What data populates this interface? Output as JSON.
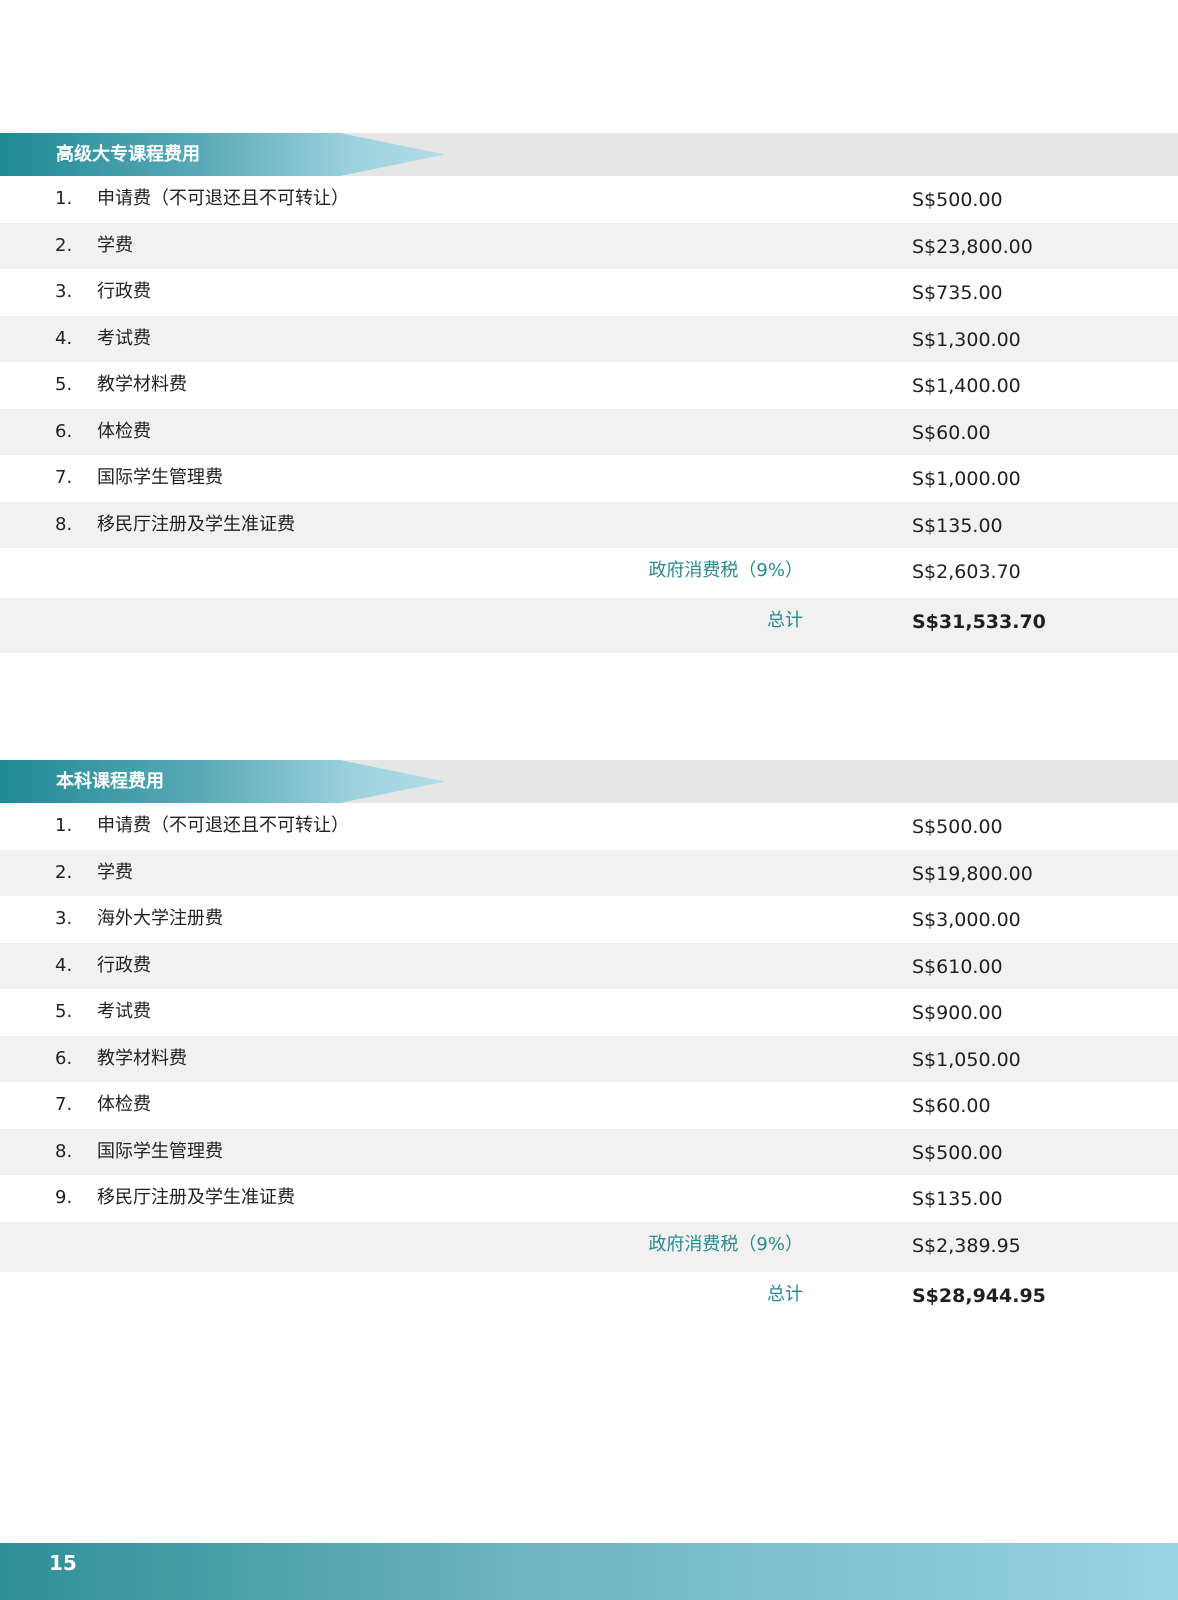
{
  "sections": [
    {
      "title": "高级大专课程费用",
      "items": [
        {
          "num": "1.",
          "label": "申请费（不可退还且不可转让）",
          "amount": "S$500.00"
        },
        {
          "num": "2.",
          "label": "学费",
          "amount": "S$23,800.00"
        },
        {
          "num": "3.",
          "label": "行政费",
          "amount": "S$735.00"
        },
        {
          "num": "4.",
          "label": "考试费",
          "amount": "S$1,300.00"
        },
        {
          "num": "5.",
          "label": "教学材料费",
          "amount": "S$1,400.00"
        },
        {
          "num": "6.",
          "label": "体检费",
          "amount": "S$60.00"
        },
        {
          "num": "7.",
          "label": "国际学生管理费",
          "amount": "S$1,000.00"
        },
        {
          "num": "8.",
          "label": "移民厅注册及学生准证费",
          "amount": "S$135.00"
        }
      ],
      "tax_label": "政府消费税（9%）",
      "tax_amount": "S$2,603.70",
      "total_label": "总计",
      "total_amount": "S$31,533.70"
    },
    {
      "title": "本科课程费用",
      "items": [
        {
          "num": "1.",
          "label": "申请费（不可退还且不可转让）",
          "amount": "S$500.00"
        },
        {
          "num": "2.",
          "label": "学费",
          "amount": "S$19,800.00"
        },
        {
          "num": "3.",
          "label": "海外大学注册费",
          "amount": "S$3,000.00"
        },
        {
          "num": "4.",
          "label": "行政费",
          "amount": "S$610.00"
        },
        {
          "num": "5.",
          "label": "考试费",
          "amount": "S$900.00"
        },
        {
          "num": "6.",
          "label": "教学材料费",
          "amount": "S$1,050.00"
        },
        {
          "num": "7.",
          "label": "体检费",
          "amount": "S$60.00"
        },
        {
          "num": "8.",
          "label": "国际学生管理费",
          "amount": "S$500.00"
        },
        {
          "num": "9.",
          "label": "移民厅注册及学生准证费",
          "amount": "S$135.00"
        }
      ],
      "tax_label": "政府消费税（9%）",
      "tax_amount": "S$2,389.95",
      "total_label": "总计",
      "total_amount": "S$28,944.95"
    }
  ],
  "footer": {
    "page_number": "15"
  },
  "colors": {
    "accent": "#2a8a8f",
    "row_alt": "#f1f1f1",
    "header_bar": "#e6e6e6"
  }
}
